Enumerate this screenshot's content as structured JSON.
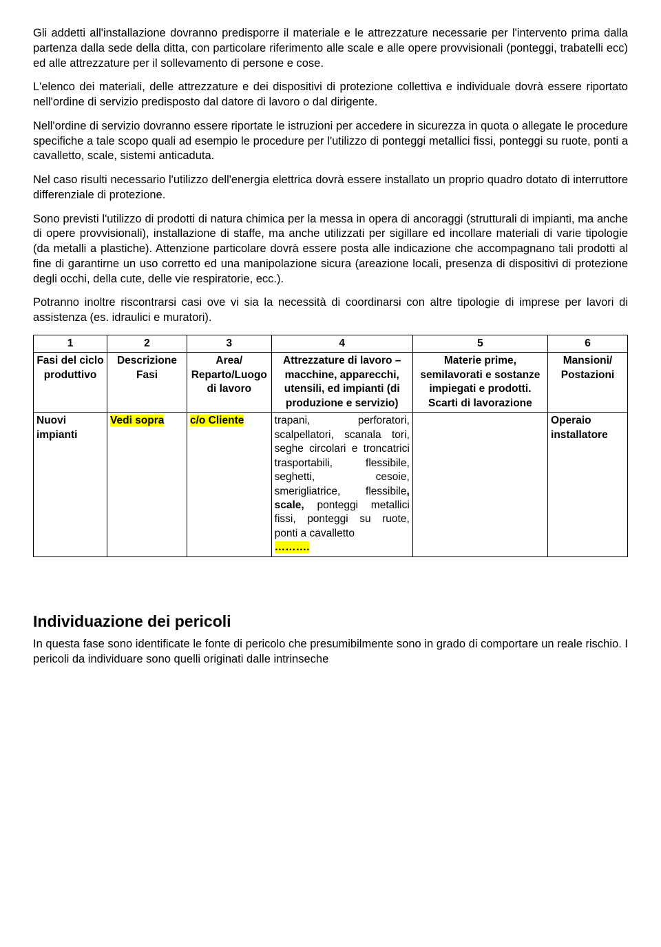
{
  "paragraphs": {
    "p1": "Gli addetti all'installazione dovranno predisporre il materiale e le attrezzature necessarie per l'intervento prima dalla partenza dalla sede della ditta, con particolare riferimento alle scale e alle opere provvisionali (ponteggi, trabatelli ecc) ed alle attrezzature per il sollevamento di persone e cose.",
    "p2": "L'elenco dei materiali, delle attrezzature e dei dispositivi di protezione collettiva e individuale dovrà essere riportato nell'ordine di servizio predisposto dal datore di lavoro o dal dirigente.",
    "p3": "Nell'ordine di servizio dovranno essere riportate le istruzioni per accedere in sicurezza in quota o allegate le procedure specifiche a tale scopo  quali ad esempio le procedure per l'utilizzo di ponteggi metallici fissi, ponteggi su ruote, ponti a cavalletto, scale, sistemi anticaduta.",
    "p4": "Nel caso risulti necessario l'utilizzo dell'energia elettrica dovrà essere installato un proprio quadro dotato di interruttore differenziale di protezione.",
    "p5": "Sono previsti l'utilizzo di prodotti di natura chimica per la messa in opera di ancoraggi (strutturali di impianti, ma anche di opere provvisionali), installazione di staffe, ma anche utilizzati per sigillare ed incollare materiali di varie tipologie (da metalli a plastiche).  Attenzione particolare dovrà essere posta alle indicazione che accompagnano tali prodotti al fine di garantirne un uso corretto ed una manipolazione sicura (areazione locali, presenza di dispositivi di protezione degli occhi, della cute, delle vie respiratorie, ecc.).",
    "p6": "Potranno inoltre riscontrarsi casi ove vi sia la necessità di coordinarsi con altre tipologie di imprese per lavori di assistenza (es. idraulici e muratori)."
  },
  "table": {
    "numbers": [
      "1",
      "2",
      "3",
      "4",
      "5",
      "6"
    ],
    "headers": {
      "h1": "Fasi del ciclo produttivo",
      "h2": "Descrizione Fasi",
      "h3": "Area/ Reparto/Luogo di lavoro",
      "h4": "Attrezzature di lavoro – macchine, apparecchi,  utensili, ed impianti (di produzione e servizio)",
      "h5": "Materie prime, semilavorati e sostanze impiegati e prodotti. Scarti di lavorazione",
      "h6": "Mansioni/ Postazioni"
    },
    "row": {
      "c1": "Nuovi impianti",
      "c2": "Vedi sopra",
      "c3": "c/o Cliente",
      "c4_a": "trapani, perforatori, scalpellatori, scanala tori, seghe circolari e troncatrici trasportabili, flessibile, seghetti, cesoie, smerigliatrice, flessibile",
      "c4_b": ", scale,",
      "c4_c": " ponteggi metallici fissi, ponteggi su ruote, ponti a cavalletto",
      "c4_dots": "……….",
      "c5": "",
      "c6": "Operaio installatore"
    }
  },
  "section": {
    "title": "Individuazione dei pericoli",
    "body": "In questa fase sono identificate le fonte di pericolo che presumibilmente sono in grado di comportare un reale rischio. I pericoli da individuare sono quelli originati dalle intrinseche"
  }
}
